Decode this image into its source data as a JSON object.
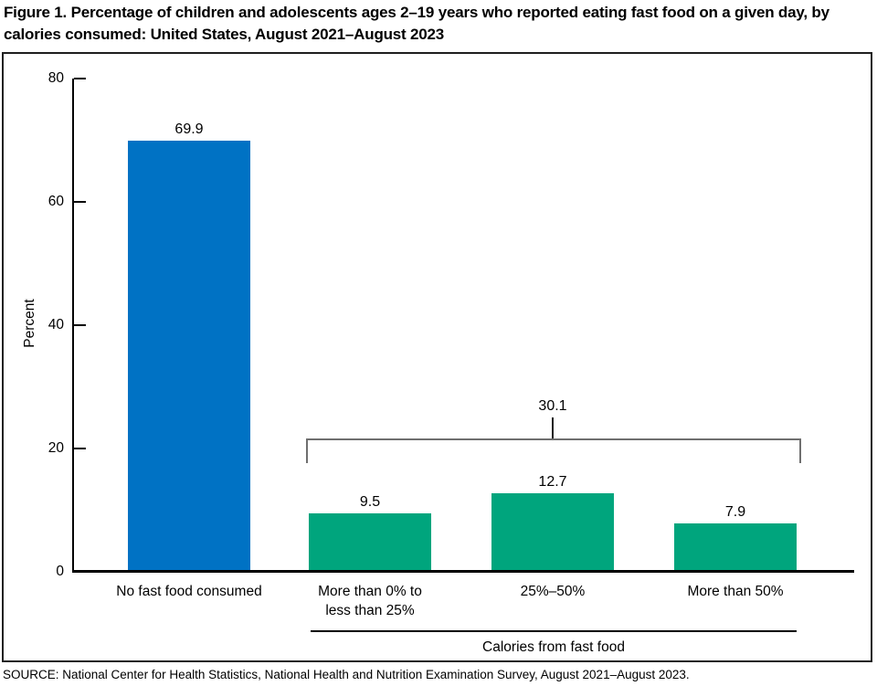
{
  "source_note": "SOURCE: National Center for Health Statistics, National Health and Nutrition Examination Survey, August 2021–August 2023.",
  "chart_data": {
    "type": "bar",
    "title": "Figure 1. Percentage of children and adolescents ages 2–19 years who reported eating fast food on a given day, by calories consumed: United States, August 2021–August 2023",
    "categories": [
      "No fast food consumed",
      "More than 0% to less than 25%",
      "25%–50%",
      "More than 50%"
    ],
    "values": [
      69.9,
      9.5,
      12.7,
      7.9
    ],
    "bar_colors": [
      "#0072C4",
      "#00A57D",
      "#00A57D",
      "#00A57D"
    ],
    "xlabel": "",
    "ylabel": "Percent",
    "ylim": [
      0,
      80
    ],
    "yticks": [
      0,
      20,
      40,
      60,
      80
    ],
    "grid": false,
    "legend": "none",
    "group_bracket": {
      "label": "30.1",
      "from_category_index": 1,
      "to_category_index": 3,
      "color": "#6f6f6f"
    },
    "x_group_label": "Calories from fast food",
    "x_group_label_span": [
      1,
      3
    ]
  }
}
